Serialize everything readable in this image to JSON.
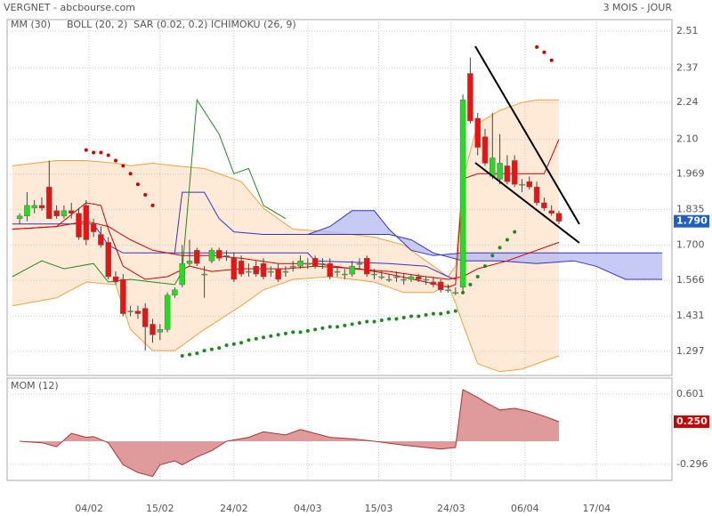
{
  "chart_data": [
    {
      "type": "candlestick",
      "title": "VERGNET - abcbourse.com",
      "subtitle": "3 MOIS - JOUR",
      "xlim": [
        -1.7,
        88.3
      ],
      "xticks": [
        {
          "value": 9.4,
          "label": "04/02"
        },
        {
          "value": 19,
          "label": "15/02"
        },
        {
          "value": 29,
          "label": "24/02"
        },
        {
          "value": 39,
          "label": "04/03"
        },
        {
          "value": 48.6,
          "label": "15/03"
        },
        {
          "value": 58.4,
          "label": "24/03"
        },
        {
          "value": 68.4,
          "label": "06/04"
        },
        {
          "value": 78.1,
          "label": "17/04"
        }
      ],
      "ylim": [
        1.206,
        2.554
      ],
      "yticks": [
        2.51,
        2.37,
        2.24,
        {
          "value": 2.1,
          "label": "2.10"
        },
        1.969,
        1.835,
        {
          "value": 1.7,
          "label": "1.700"
        },
        1.566,
        1.431,
        1.297
      ],
      "grid": true,
      "up_color": "#22dd22",
      "down_color": "#ee1111",
      "open": [
        1.8,
        1.81,
        1.84,
        1.85,
        1.92,
        1.83,
        1.81,
        1.83,
        1.82,
        1.85,
        1.78,
        1.74,
        1.71,
        1.58,
        1.57,
        1.45,
        1.45,
        1.46,
        1.4,
        1.37,
        1.38,
        1.51,
        1.55,
        1.63,
        1.68,
        1.59,
        1.64,
        1.68,
        1.66,
        1.65,
        1.64,
        1.6,
        1.62,
        1.63,
        1.6,
        1.61,
        1.6,
        1.62,
        1.62,
        1.63,
        1.65,
        1.63,
        1.63,
        1.6,
        1.59,
        1.59,
        1.63,
        1.65,
        1.59,
        1.58,
        1.57,
        1.58,
        1.57,
        1.57,
        1.58,
        1.57,
        1.56,
        1.56,
        1.53,
        1.52,
        1.54,
        2.35,
        2.18,
        2.11,
        1.96,
        1.95,
        2.0,
        2.02,
        1.93,
        1.94,
        1.92,
        1.86,
        1.83,
        1.82
      ],
      "high": [
        1.82,
        1.9,
        1.87,
        1.88,
        2.02,
        1.85,
        1.85,
        1.86,
        1.84,
        1.87,
        1.8,
        1.77,
        1.73,
        1.6,
        1.59,
        1.47,
        1.47,
        1.48,
        1.42,
        1.4,
        1.52,
        1.54,
        1.7,
        1.72,
        1.69,
        1.62,
        1.69,
        1.69,
        1.68,
        1.67,
        1.66,
        1.63,
        1.64,
        1.65,
        1.62,
        1.63,
        1.62,
        1.64,
        1.66,
        1.65,
        1.66,
        1.65,
        1.65,
        1.62,
        1.61,
        1.64,
        1.65,
        1.66,
        1.61,
        1.6,
        1.59,
        1.6,
        1.59,
        1.59,
        1.59,
        1.58,
        1.58,
        1.57,
        1.55,
        1.54,
        2.27,
        2.41,
        2.2,
        2.14,
        2.2,
        2.12,
        2.04,
        2.04,
        1.95,
        1.96,
        1.94,
        1.88,
        1.85,
        1.83
      ],
      "low": [
        1.78,
        1.79,
        1.82,
        1.83,
        1.8,
        1.8,
        1.8,
        1.8,
        1.72,
        1.7,
        1.73,
        1.69,
        1.57,
        1.55,
        1.43,
        1.43,
        1.42,
        1.3,
        1.33,
        1.34,
        1.37,
        1.5,
        1.54,
        1.62,
        1.62,
        1.5,
        1.63,
        1.64,
        1.64,
        1.56,
        1.58,
        1.58,
        1.58,
        1.57,
        1.58,
        1.56,
        1.58,
        1.6,
        1.61,
        1.61,
        1.61,
        1.61,
        1.57,
        1.58,
        1.57,
        1.58,
        1.61,
        1.58,
        1.57,
        1.57,
        1.56,
        1.56,
        1.55,
        1.56,
        1.56,
        1.55,
        1.54,
        1.52,
        1.52,
        1.51,
        1.52,
        2.16,
        2.04,
        2.0,
        1.95,
        1.93,
        1.93,
        1.92,
        1.9,
        1.91,
        1.85,
        1.83,
        1.81,
        1.78
      ],
      "close": [
        1.81,
        1.85,
        1.85,
        1.84,
        1.8,
        1.81,
        1.83,
        1.82,
        1.73,
        1.72,
        1.75,
        1.7,
        1.58,
        1.56,
        1.44,
        1.45,
        1.44,
        1.39,
        1.36,
        1.38,
        1.51,
        1.53,
        1.63,
        1.64,
        1.63,
        1.59,
        1.68,
        1.65,
        1.66,
        1.57,
        1.59,
        1.6,
        1.59,
        1.58,
        1.6,
        1.57,
        1.6,
        1.62,
        1.64,
        1.63,
        1.62,
        1.63,
        1.58,
        1.6,
        1.59,
        1.62,
        1.63,
        1.59,
        1.59,
        1.58,
        1.57,
        1.58,
        1.57,
        1.58,
        1.57,
        1.57,
        1.55,
        1.53,
        1.53,
        1.52,
        2.25,
        2.17,
        2.07,
        2.01,
        2.03,
        2.01,
        1.94,
        1.93,
        1.93,
        1.92,
        1.86,
        1.84,
        1.82,
        1.79
      ],
      "last_label": {
        "value": 1.79,
        "label": "1.790",
        "color": "#1f5fbf"
      },
      "mm": {
        "name": "MM (30)",
        "color": "#cc0000",
        "x": [
          -1,
          5,
          9,
          12,
          15,
          18,
          22,
          26,
          30,
          35,
          40,
          45,
          50,
          55,
          58,
          60,
          62,
          66,
          70,
          73
        ],
        "values": [
          1.76,
          1.77,
          1.79,
          1.77,
          1.72,
          1.68,
          1.66,
          1.66,
          1.65,
          1.63,
          1.63,
          1.61,
          1.6,
          1.58,
          1.57,
          1.58,
          1.61,
          1.64,
          1.68,
          1.71
        ]
      },
      "bollinger": {
        "name": "BOLL (20, 2)",
        "color": "#f0a040",
        "fill": "#fde3c8",
        "x": [
          -1,
          5,
          9,
          13,
          15,
          18,
          21,
          25,
          30,
          33,
          37,
          42,
          48,
          52,
          56,
          58,
          59,
          60,
          62,
          65,
          68,
          70,
          73
        ],
        "upper": [
          2.0,
          2.02,
          2.02,
          2.01,
          2.0,
          2.01,
          2.0,
          1.99,
          1.94,
          1.84,
          1.76,
          1.75,
          1.73,
          1.7,
          1.62,
          1.58,
          1.62,
          1.95,
          2.16,
          2.21,
          2.24,
          2.25,
          2.25
        ],
        "lower": [
          1.47,
          1.5,
          1.56,
          1.55,
          1.38,
          1.3,
          1.3,
          1.38,
          1.47,
          1.53,
          1.57,
          1.58,
          1.56,
          1.52,
          1.52,
          1.55,
          1.48,
          1.4,
          1.25,
          1.22,
          1.23,
          1.25,
          1.28
        ]
      },
      "sar": {
        "name": "SAR (0.02, 0.2)",
        "color": "#cc0000",
        "color_below": "#1a8a1a",
        "x": [
          9,
          10,
          11,
          12,
          13,
          14,
          15,
          16,
          17,
          18,
          22,
          23,
          24,
          25,
          26,
          27,
          28,
          29,
          30,
          31,
          32,
          33,
          34,
          35,
          36,
          37,
          38,
          39,
          40,
          41,
          42,
          43,
          44,
          45,
          46,
          47,
          48,
          49,
          50,
          51,
          52,
          53,
          54,
          55,
          56,
          57,
          58,
          59,
          60,
          61,
          62,
          63,
          64,
          65,
          66,
          67,
          70,
          71,
          72
        ],
        "values": [
          2.06,
          2.05,
          2.05,
          2.04,
          2.02,
          2.0,
          1.97,
          1.93,
          1.89,
          1.85,
          1.28,
          1.285,
          1.29,
          1.3,
          1.305,
          1.31,
          1.32,
          1.325,
          1.33,
          1.34,
          1.345,
          1.35,
          1.355,
          1.36,
          1.365,
          1.37,
          1.37,
          1.375,
          1.38,
          1.385,
          1.39,
          1.39,
          1.395,
          1.4,
          1.405,
          1.41,
          1.41,
          1.415,
          1.42,
          1.42,
          1.425,
          1.43,
          1.43,
          1.435,
          1.44,
          1.44,
          1.445,
          1.45,
          1.52,
          1.55,
          1.58,
          1.62,
          1.66,
          1.69,
          1.72,
          1.75,
          2.45,
          2.43,
          2.4
        ]
      },
      "ichimoku": {
        "name": "ICHIMOKU (26, 9)",
        "color": "#3333cc",
        "lines": [
          {
            "color": "#3333cc",
            "x": [
              -1,
              10,
              12,
              14,
              39,
              40,
              50,
              55,
              58,
              59
            ],
            "values": [
              1.78,
              1.78,
              1.7,
              1.67,
              1.67,
              1.64,
              1.63,
              1.62,
              1.58,
              1.57
            ]
          },
          {
            "color": "#3333cc",
            "x": [
              21,
              22,
              25,
              27,
              29,
              33,
              39
            ],
            "values": [
              1.67,
              1.9,
              1.9,
              1.8,
              1.75,
              1.74,
              1.74
            ]
          },
          {
            "color": "#cc0000",
            "x": [
              -1,
              5,
              9,
              11,
              12,
              14,
              17,
              20,
              23,
              26,
              30,
              36,
              40,
              46,
              50,
              55,
              58,
              59,
              60,
              62,
              66,
              71,
              73
            ],
            "values": [
              1.76,
              1.77,
              1.86,
              1.85,
              1.76,
              1.62,
              1.57,
              1.58,
              1.62,
              1.6,
              1.61,
              1.61,
              1.62,
              1.61,
              1.59,
              1.56,
              1.54,
              1.55,
              1.95,
              1.97,
              1.97,
              1.97,
              2.1
            ]
          },
          {
            "color": "#228822",
            "x": [
              -1,
              1,
              3,
              6,
              10,
              12,
              15,
              18,
              21,
              22,
              24,
              27,
              29,
              31,
              33,
              36
            ],
            "values": [
              1.58,
              1.61,
              1.64,
              1.61,
              1.63,
              1.56,
              1.57,
              1.56,
              1.55,
              1.6,
              2.25,
              2.12,
              1.97,
              1.99,
              1.85,
              1.8
            ]
          }
        ],
        "cloud": {
          "fill": "#b4b8f0",
          "x": [
            39,
            42,
            45,
            48,
            50,
            53,
            56,
            60,
            65,
            70,
            75,
            78,
            82,
            87
          ],
          "span_a": [
            1.74,
            1.77,
            1.83,
            1.83,
            1.76,
            1.68,
            1.66,
            1.67,
            1.67,
            1.67,
            1.67,
            1.67,
            1.67,
            1.67
          ],
          "span_b": [
            1.74,
            1.74,
            1.74,
            1.74,
            1.74,
            1.72,
            1.67,
            1.64,
            1.64,
            1.63,
            1.64,
            1.62,
            1.57,
            1.57
          ]
        }
      }
    },
    {
      "type": "area",
      "title": "MOM (12)",
      "color": "#b03030",
      "fill": "#d98a8a",
      "ylim": [
        -0.5,
        0.806
      ],
      "yticks": [
        0.601,
        -0.296
      ],
      "grid": true,
      "x": [
        0,
        3,
        5,
        7,
        9,
        10,
        12,
        14,
        16,
        18,
        19,
        21,
        22,
        24,
        26,
        28,
        31,
        33,
        36,
        38,
        42,
        45,
        48,
        52,
        55,
        57,
        59,
        60,
        62,
        63,
        65,
        67,
        69,
        71,
        73
      ],
      "values": [
        0,
        -0.02,
        -0.07,
        0.1,
        0.05,
        0.06,
        -0.02,
        -0.3,
        -0.4,
        -0.45,
        -0.3,
        -0.25,
        -0.3,
        -0.2,
        -0.12,
        0,
        0.05,
        0.12,
        0.08,
        0.15,
        0.05,
        0.03,
        0,
        -0.05,
        -0.08,
        -0.1,
        -0.08,
        0.66,
        0.56,
        0.5,
        0.4,
        0.42,
        0.38,
        0.32,
        0.25
      ],
      "last_label": {
        "value": 0.25,
        "label": "0.250",
        "color": "#cc0000"
      }
    }
  ]
}
